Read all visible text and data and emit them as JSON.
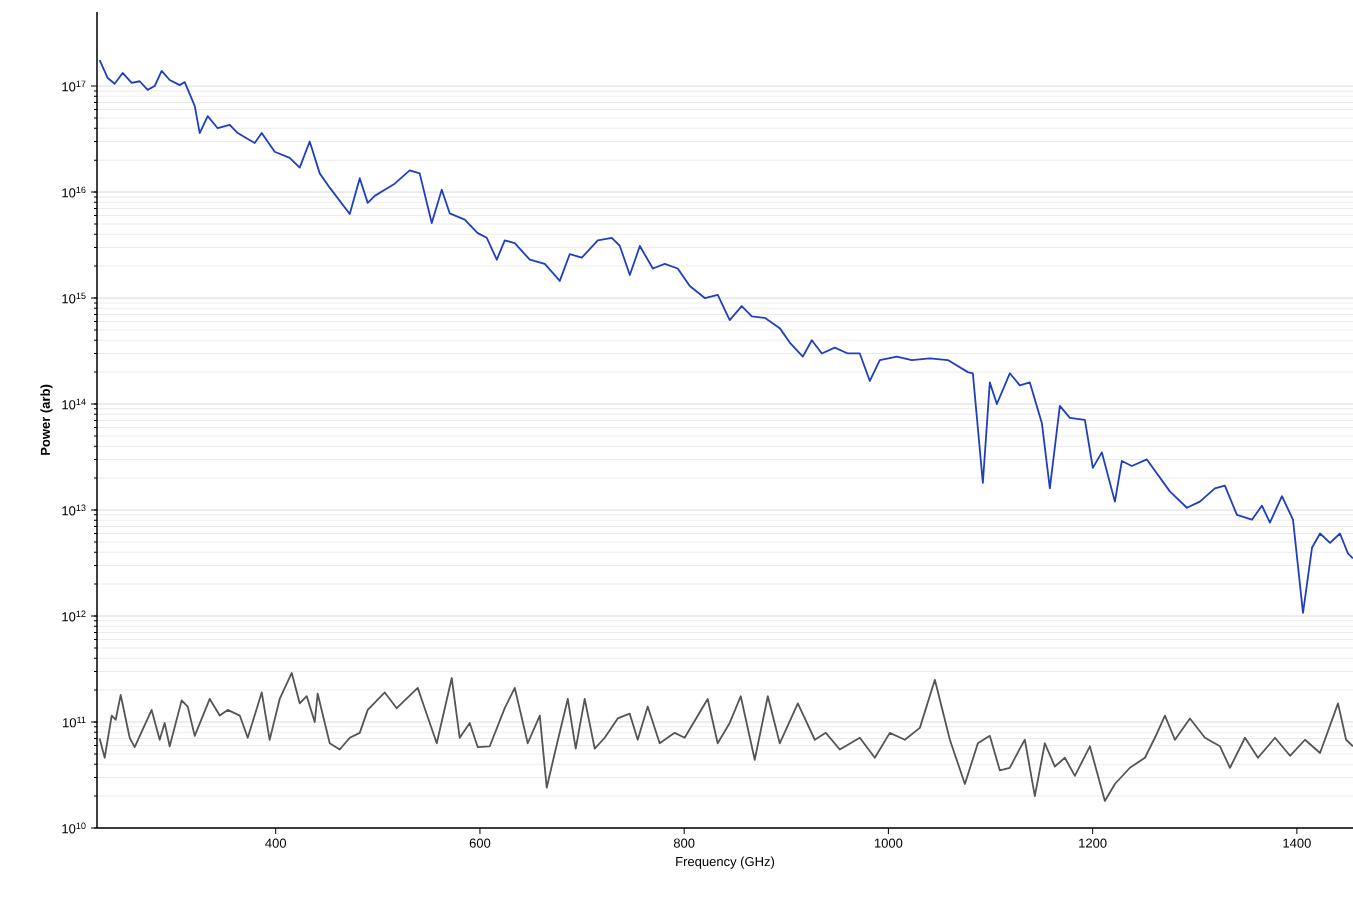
{
  "chart_data": {
    "type": "line",
    "xlabel": "Frequency (GHz)",
    "ylabel": "Power (arb)",
    "log": "y",
    "grid": "y",
    "marker": "none",
    "line_style": "solid",
    "xlim": [
      225,
      1455
    ],
    "ylim": [
      10000000000.0,
      5e+17
    ],
    "xticks": [
      400,
      600,
      800,
      1000,
      1200,
      1400
    ],
    "yticks": [
      {
        "value": 10000000000.0,
        "label": "10$^{10}$"
      },
      {
        "value": 100000000000.0,
        "label": "10$^{11}$"
      },
      {
        "value": 1000000000000.0,
        "label": "10$^{12}$"
      },
      {
        "value": 10000000000000.0,
        "label": "10$^{13}$"
      },
      {
        "value": 100000000000000.0,
        "label": "10$^{14}$"
      },
      {
        "value": 1000000000000000.0,
        "label": "10$^{15}$"
      },
      {
        "value": 1e+16,
        "label": "10$^{16}$"
      },
      {
        "value": 1e+17,
        "label": "10$^{17}$"
      }
    ],
    "series": [
      {
        "color": "#1f3fbf",
        "x": [
          227.6,
          235.5,
          242.3,
          250.1,
          259,
          266.8,
          274.6,
          281.5,
          288.3,
          296.2,
          306,
          310.9,
          320.7,
          325.6,
          333.4,
          343.2,
          355,
          362.8,
          379.4,
          386.3,
          399,
          413.7,
          423.5,
          433.3,
          443.1,
          452.9,
          472.5,
          482.3,
          490.1,
          497,
          506.8,
          516.6,
          531.2,
          541,
          552.8,
          562.6,
          570.4,
          585.1,
          597.8,
          606.7,
          616.5,
          624.3,
          634.1,
          648.8,
          663.5,
          678.2,
          688,
          699.7,
          715.4,
          729.1,
          737,
          746.8,
          756.6,
          769.3,
          781,
          793.7,
          805.5,
          820.2,
          832.9,
          844.6,
          856.4,
          866.2,
          878.9,
          893.6,
          903.4,
          916.2,
          925,
          934.8,
          947.5,
          960.2,
          972,
          981.8,
          991.6,
          1008.2,
          1022.9,
          1040.5,
          1058.2,
          1077.8,
          1082.7,
          1092.5,
          1099.3,
          1106.2,
          1118.9,
          1128.7,
          1138.5,
          1150.3,
          1158.1,
          1167.9,
          1177.7,
          1192.4,
          1200.2,
          1209,
          1221.8,
          1228.6,
          1238.4,
          1253.1,
          1275.6,
          1292.3,
          1305,
          1319.7,
          1329.5,
          1341.3,
          1356,
          1365.8,
          1373.6,
          1385.4,
          1396.2,
          1406,
          1414.8,
          1422.7,
          1432.5,
          1442.2,
          1450,
          1454.9
        ],
        "values": [
          1.76e+17,
          1.19e+17,
          1.05e+17,
          1.33e+17,
          1.07e+17,
          1.11e+17,
          9.2e+16,
          1e+17,
          1.39e+17,
          1.14e+17,
          1.02e+17,
          1.09e+17,
          6.5e+16,
          3.6e+16,
          5.2e+16,
          4e+16,
          4.3e+16,
          3.6e+16,
          2.9e+16,
          3.6e+16,
          2.4e+16,
          2.1e+16,
          1.7e+16,
          3e+16,
          1.5e+16,
          1.1e+16,
          6200000000000000.0,
          1.35e+16,
          7900000000000000.0,
          9200000000000000.0,
          1.05e+16,
          1.2e+16,
          1.6e+16,
          1.5e+16,
          5100000000000000.0,
          1.05e+16,
          6300000000000000.0,
          5500000000000000.0,
          4100000000000000.0,
          3700000000000000.0,
          2300000000000000.0,
          3500000000000000.0,
          3300000000000000.0,
          2300000000000000.0,
          2100000000000000.0,
          1450000000000000.0,
          2600000000000000.0,
          2400000000000000.0,
          3500000000000000.0,
          3700000000000000.0,
          3100000000000000.0,
          1650000000000000.0,
          3100000000000000.0,
          1900000000000000.0,
          2100000000000000.0,
          1900000000000000.0,
          1300000000000000.0,
          1000000000000000.0,
          1070000000000000.0,
          620000000000000.0,
          840000000000000.0,
          670000000000000.0,
          650000000000000.0,
          520000000000000.0,
          380000000000000.0,
          280000000000000.0,
          400000000000000.0,
          300000000000000.0,
          340000000000000.0,
          300000000000000.0,
          300000000000000.0,
          165000000000000.0,
          260000000000000.0,
          280000000000000.0,
          260000000000000.0,
          270000000000000.0,
          260000000000000.0,
          200000000000000.0,
          195000000000000.0,
          18000000000000.0,
          160000000000000.0,
          100000000000000.0,
          195000000000000.0,
          150000000000000.0,
          160000000000000.0,
          66000000000000.0,
          16000000000000.0,
          96000000000000.0,
          74000000000000.0,
          71000000000000.0,
          25000000000000.0,
          35000000000000.0,
          12000000000000.0,
          29000000000000.0,
          26000000000000.0,
          30000000000000.0,
          15000000000000.0,
          10500000000000.0,
          12000000000000.0,
          16000000000000.0,
          17000000000000.0,
          9000000000000.0,
          8100000000000.0,
          11000000000000.0,
          7600000000000.0,
          13500000000000.0,
          8100000000000.0,
          1070000000000.0,
          4400000000000.0,
          6000000000000.0,
          4900000000000.0,
          6000000000000.0,
          3900000000000.0,
          3500000000000.0
        ]
      },
      {
        "color": "#555555",
        "x": [
          227.6,
          232.5,
          239.4,
          243.3,
          248.2,
          257,
          261.9,
          278.5,
          286.4,
          291.2,
          296.2,
          307.9,
          313.8,
          320.7,
          335.4,
          345.2,
          353,
          364.8,
          372.6,
          386.3,
          394.1,
          403.9,
          415.7,
          423.5,
          430.4,
          438.2,
          441.1,
          452.9,
          462.7,
          472.5,
          482.3,
          490.1,
          506.8,
          518.5,
          539.1,
          545.9,
          557.7,
          572.4,
          580.2,
          590,
          597.8,
          609.6,
          624.3,
          634.1,
          646.8,
          658.6,
          665.4,
          673.3,
          686,
          693.8,
          702.6,
          712.4,
          722.2,
          734.9,
          746.6,
          754.5,
          764.3,
          776,
          790.7,
          800.5,
          823,
          832.8,
          844.6,
          855.4,
          869.1,
          881.9,
          893.6,
          911.3,
          927.9,
          938.7,
          952.4,
          972,
          986.7,
          1001.4,
          1016.1,
          1030.8,
          1045.5,
          1060.2,
          1074.9,
          1087.6,
          1099.3,
          1109.1,
          1118.9,
          1128.7,
          1133.6,
          1143.4,
          1153.2,
          1163,
          1172.8,
          1182.6,
          1197.3,
          1212,
          1221.8,
          1236.5,
          1251.2,
          1261,
          1270.8,
          1280.6,
          1295.3,
          1310,
          1324.7,
          1334.5,
          1349.2,
          1361.9,
          1378.6,
          1393.3,
          1408,
          1422.7,
          1440.3,
          1448.2,
          1454.9
        ],
        "values": [
          70000000000.0,
          46000000000.0,
          115000000000.0,
          105000000000.0,
          180000000000.0,
          71000000000.0,
          58000000000.0,
          130000000000.0,
          68000000000.0,
          98000000000.0,
          59000000000.0,
          160000000000.0,
          140000000000.0,
          74000000000.0,
          165000000000.0,
          115000000000.0,
          130000000000.0,
          115000000000.0,
          71000000000.0,
          190000000000.0,
          68000000000.0,
          165000000000.0,
          290000000000.0,
          150000000000.0,
          175000000000.0,
          100000000000.0,
          185000000000.0,
          63000000000.0,
          55000000000.0,
          71000000000.0,
          79000000000.0,
          130000000000.0,
          190000000000.0,
          135000000000.0,
          210000000000.0,
          135000000000.0,
          63000000000.0,
          260000000000.0,
          71000000000.0,
          98000000000.0,
          58000000000.0,
          59000000000.0,
          135000000000.0,
          210000000000.0,
          63000000000.0,
          115000000000.0,
          24000000000.0,
          51000000000.0,
          165000000000.0,
          56000000000.0,
          165000000000.0,
          56000000000.0,
          71000000000.0,
          108000000000.0,
          120000000000.0,
          68000000000.0,
          140000000000.0,
          63000000000.0,
          79000000000.0,
          71000000000.0,
          165000000000.0,
          63000000000.0,
          98000000000.0,
          175000000000.0,
          44000000000.0,
          175000000000.0,
          63000000000.0,
          150000000000.0,
          68000000000.0,
          79000000000.0,
          55000000000.0,
          71000000000.0,
          46000000000.0,
          79000000000.0,
          68000000000.0,
          88000000000.0,
          250000000000.0,
          68000000000.0,
          26000000000.0,
          63000000000.0,
          74000000000.0,
          35000000000.0,
          37000000000.0,
          56000000000.0,
          68000000000.0,
          20000000000.0,
          63000000000.0,
          38000000000.0,
          46000000000.0,
          31000000000.0,
          59000000000.0,
          18000000000.0,
          26000000000.0,
          37000000000.0,
          46000000000.0,
          71000000000.0,
          115000000000.0,
          68000000000.0,
          108000000000.0,
          71000000000.0,
          59000000000.0,
          37000000000.0,
          71000000000.0,
          46000000000.0,
          71000000000.0,
          48000000000.0,
          68000000000.0,
          51000000000.0,
          150000000000.0,
          68000000000.0,
          59000000000.0
        ]
      }
    ]
  }
}
